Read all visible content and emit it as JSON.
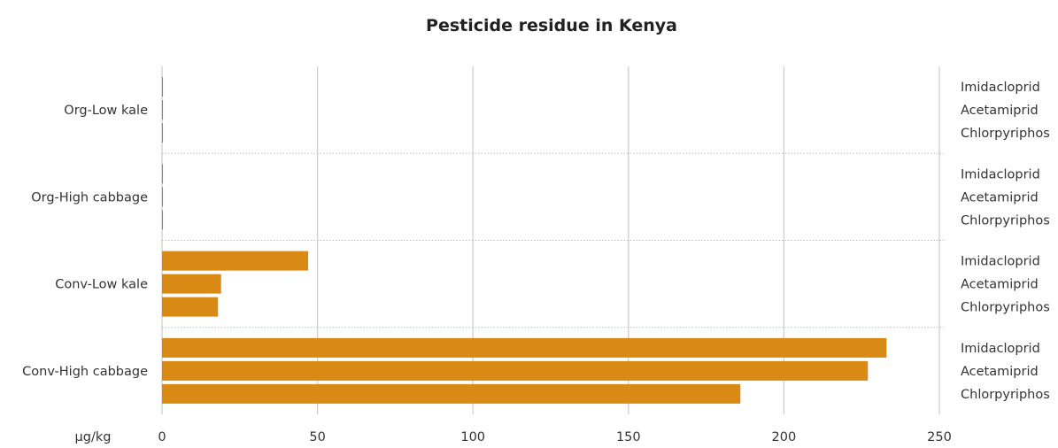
{
  "chart_data": {
    "type": "bar",
    "orientation": "horizontal",
    "title": "Pesticide residue in Kenya",
    "unit_label": "µg/kg",
    "xlim": [
      0,
      250
    ],
    "xticks": [
      0,
      50,
      100,
      150,
      200,
      250
    ],
    "grid": true,
    "series_names": [
      "Imidacloprid",
      "Acetamiprid",
      "Chlorpyriphos"
    ],
    "categories": [
      {
        "label": "Org-Low kale",
        "color": "#6aa632",
        "values": [
          0.3,
          0.3,
          0.3
        ]
      },
      {
        "label": "Org-High cabbage",
        "color": "#6aa632",
        "values": [
          0.3,
          0.3,
          0.3
        ]
      },
      {
        "label": "Conv-Low kale",
        "color": "#d98a14",
        "values": [
          47,
          19,
          18
        ]
      },
      {
        "label": "Conv-High cabbage",
        "color": "#d98a14",
        "values": [
          233,
          227,
          186
        ]
      }
    ]
  }
}
